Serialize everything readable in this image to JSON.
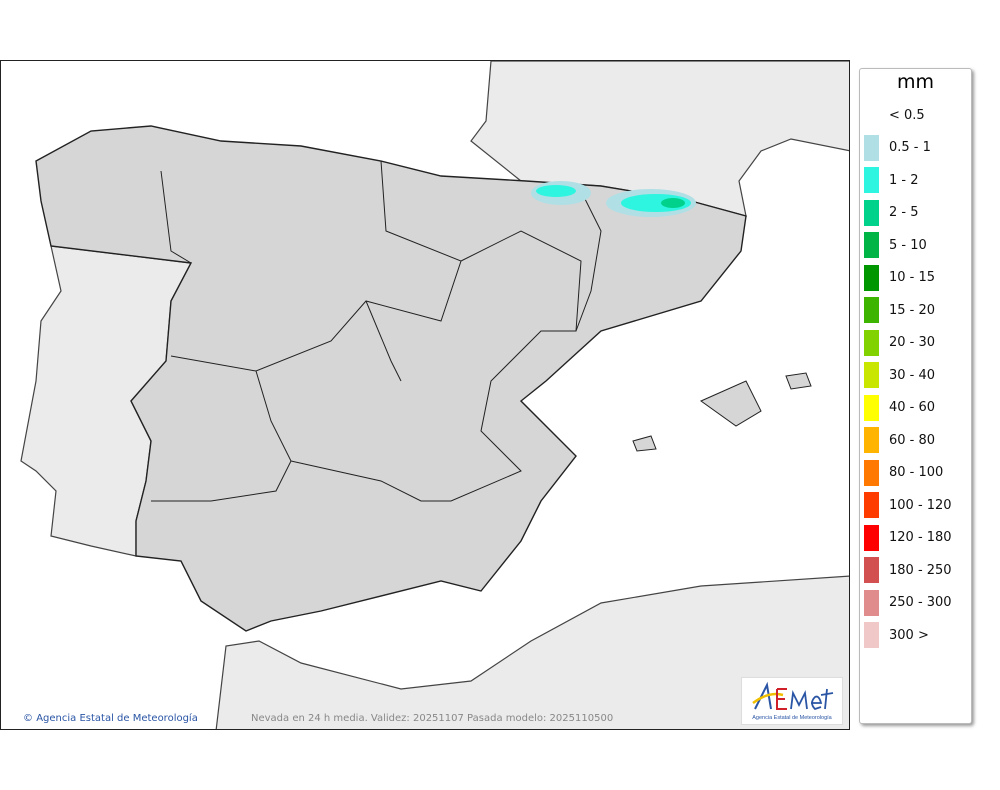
{
  "map": {
    "copyright": "Agencia Estatal de Meteorología",
    "caption": "Nevada en 24 h media. Validez: 20251107 Pasada modelo: 2025110500",
    "logo_text": "AEMet",
    "logo_subtitle": "Agencia Estatal de Meteorología",
    "colors": {
      "spain": "#d6d6d6",
      "neighbors": "#ebebeb",
      "sea": "#ffffff"
    }
  },
  "legend": {
    "unit": "mm",
    "items": [
      {
        "label": "< 0.5",
        "color": ""
      },
      {
        "label": "0.5 - 1",
        "color": "#b0dfe5"
      },
      {
        "label": "1 - 2",
        "color": "#2ef5e0"
      },
      {
        "label": "2 - 5",
        "color": "#00d28c"
      },
      {
        "label": "5 - 10",
        "color": "#00b446"
      },
      {
        "label": "10 - 15",
        "color": "#009600"
      },
      {
        "label": "15 - 20",
        "color": "#3cb400"
      },
      {
        "label": "20 - 30",
        "color": "#82d200"
      },
      {
        "label": "30 - 40",
        "color": "#c8e600"
      },
      {
        "label": "40 - 60",
        "color": "#ffff00"
      },
      {
        "label": "60 - 80",
        "color": "#ffb400"
      },
      {
        "label": "80 - 100",
        "color": "#ff7800"
      },
      {
        "label": "100 - 120",
        "color": "#ff3c00"
      },
      {
        "label": "120 - 180",
        "color": "#ff0000"
      },
      {
        "label": "180 - 250",
        "color": "#d25050"
      },
      {
        "label": "250 - 300",
        "color": "#e08c8c"
      },
      {
        "label": "300 >",
        "color": "#f0c8c8"
      }
    ]
  }
}
